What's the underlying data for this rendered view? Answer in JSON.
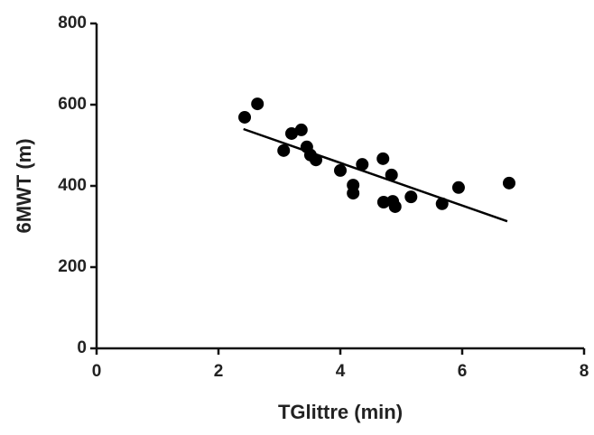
{
  "chart_data": {
    "type": "scatter",
    "x_label": "TGlittre (min)",
    "y_label": "6MWT (m)",
    "x": [
      2.43,
      2.64,
      3.07,
      3.2,
      3.36,
      3.45,
      3.51,
      3.6,
      4.0,
      4.21,
      4.21,
      4.36,
      4.7,
      4.71,
      4.84,
      4.86,
      4.9,
      5.16,
      5.67,
      5.94,
      6.77
    ],
    "values": [
      569,
      602,
      487,
      529,
      538,
      496,
      476,
      464,
      438,
      402,
      382,
      453,
      467,
      360,
      427,
      362,
      349,
      373,
      356,
      396,
      407
    ],
    "color": "#000000",
    "fit_line": {
      "x": [
        2.41,
        6.74
      ],
      "y": [
        540,
        313
      ]
    },
    "xlim": [
      0,
      8
    ],
    "xticks": [
      0,
      2,
      4,
      6,
      8
    ],
    "ylim": [
      0,
      800
    ],
    "yticks": [
      0,
      200,
      400,
      600,
      800
    ],
    "grid": false
  }
}
